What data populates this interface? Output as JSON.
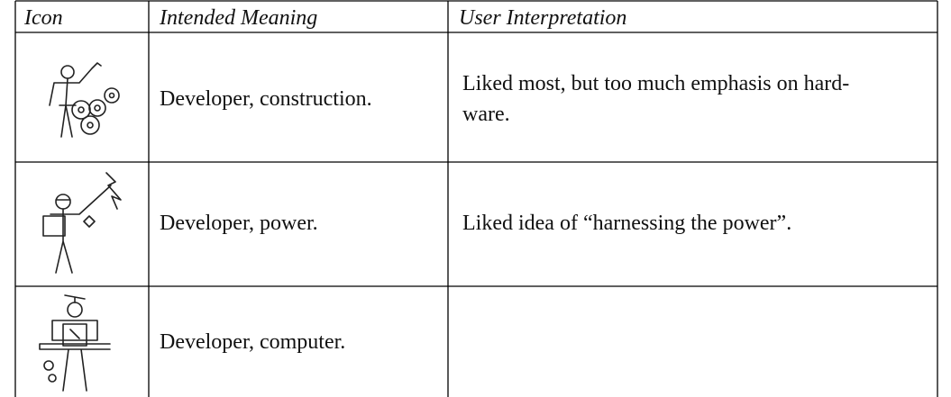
{
  "table": {
    "header": [
      "Icon",
      "Intended Meaning",
      "User Interpretation"
    ],
    "rows": [
      {
        "meaning": "Developer, construction.",
        "interpretation": [
          "Liked most, but too much emphasis on hard-",
          "ware."
        ]
      },
      {
        "meaning": "Developer, power.",
        "interpretation": [
          "Liked idea of “harnessing the power”."
        ]
      },
      {
        "meaning": "Developer, computer."
      }
    ]
  }
}
